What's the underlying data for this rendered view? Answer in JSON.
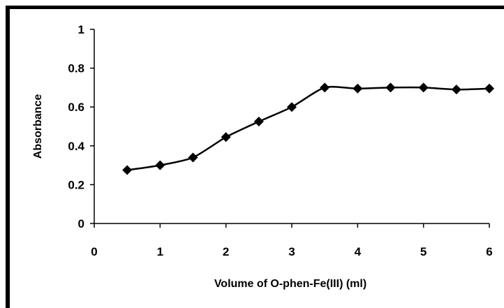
{
  "chart_data": {
    "type": "line",
    "title": "",
    "xlabel": "Volume of O-phen-Fe(III) (ml)",
    "ylabel": "Absorbance",
    "xlim": [
      0,
      6
    ],
    "ylim": [
      0,
      1
    ],
    "x_ticks": [
      "0",
      "1",
      "2",
      "3",
      "4",
      "5",
      "6"
    ],
    "y_ticks": [
      "0",
      "0.2",
      "0.4",
      "0.6",
      "0.8",
      "1"
    ],
    "grid": false,
    "legend": "none",
    "marker": "diamond",
    "line_color": "#000000",
    "series": [
      {
        "x": [
          0.5,
          1.0,
          1.5,
          2.0,
          2.5,
          3.0,
          3.5,
          4.0,
          4.5,
          5.0,
          5.5,
          6.0
        ],
        "y": [
          0.275,
          0.3,
          0.34,
          0.445,
          0.525,
          0.6,
          0.7,
          0.695,
          0.7,
          0.7,
          0.69,
          0.695
        ]
      }
    ]
  }
}
